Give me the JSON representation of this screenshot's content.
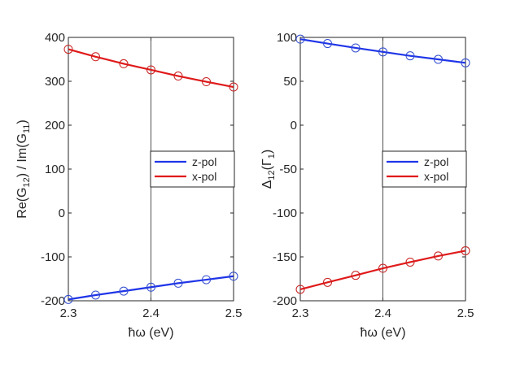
{
  "figure": {
    "colors": {
      "axis": "#262626",
      "zpol": "#1f35e8",
      "xpol": "#e01a1a",
      "marker_edge": "#2f4bcf",
      "xmark_edge": "#c81e1e",
      "background": "#ffffff"
    }
  },
  "chart_data": [
    {
      "type": "line",
      "panel": "left",
      "xlabel": "ħω (eV)",
      "ylabel": {
        "prefix": "Re(G",
        "sub1": "12",
        "mid": ") / Im(G",
        "sub2": "11",
        "suffix": ")"
      },
      "xlim": [
        2.3,
        2.5
      ],
      "ylim": [
        -200,
        400
      ],
      "xticks": [
        2.3,
        2.4,
        2.5
      ],
      "xtick_labels": [
        "2.3",
        "2.4",
        "2.5"
      ],
      "yticks": [
        -200,
        -100,
        0,
        100,
        200,
        300,
        400
      ],
      "ytick_labels": [
        "-200",
        "-100",
        "0",
        "100",
        "200",
        "300",
        "400"
      ],
      "vline_x": 2.4,
      "legend": {
        "location": "right-center",
        "entries": [
          "z-pol",
          "x-pol"
        ]
      },
      "series": [
        {
          "name": "z-pol",
          "color": "#1f35e8",
          "x": [
            2.3,
            2.333,
            2.367,
            2.4,
            2.433,
            2.467,
            2.5
          ],
          "values": [
            -197,
            -187,
            -178,
            -169,
            -160,
            -152,
            -144
          ],
          "markers": [
            -197,
            -187,
            -178,
            -169,
            -160,
            -152,
            -144
          ]
        },
        {
          "name": "x-pol",
          "color": "#e01a1a",
          "x": [
            2.3,
            2.333,
            2.367,
            2.4,
            2.433,
            2.467,
            2.5
          ],
          "values": [
            373,
            356,
            340,
            326,
            312,
            299,
            287
          ],
          "markers": [
            373,
            356,
            340,
            326,
            312,
            299,
            287
          ]
        }
      ]
    },
    {
      "type": "line",
      "panel": "right",
      "xlabel": "ħω (eV)",
      "ylabel": {
        "prefix": "Δ",
        "sub1": "12",
        "mid": "(Γ",
        "sub2": "1",
        "suffix": ")"
      },
      "xlim": [
        2.3,
        2.5
      ],
      "ylim": [
        -200,
        100
      ],
      "xticks": [
        2.3,
        2.4,
        2.5
      ],
      "xtick_labels": [
        "2.3",
        "2.4",
        "2.5"
      ],
      "yticks": [
        -200,
        -150,
        -100,
        -50,
        0,
        50,
        100
      ],
      "ytick_labels": [
        "-200",
        "-150",
        "-100",
        "-50",
        "0",
        "50",
        "100"
      ],
      "vline_x": 2.4,
      "legend": {
        "location": "right-center",
        "entries": [
          "z-pol",
          "x-pol"
        ]
      },
      "series": [
        {
          "name": "z-pol",
          "color": "#1f35e8",
          "x": [
            2.3,
            2.333,
            2.367,
            2.4,
            2.433,
            2.467,
            2.5
          ],
          "values": [
            98,
            93,
            88,
            83.5,
            79,
            75,
            71
          ],
          "markers": [
            98,
            93,
            88,
            83.5,
            79,
            75,
            71
          ]
        },
        {
          "name": "x-pol",
          "color": "#e01a1a",
          "x": [
            2.3,
            2.333,
            2.367,
            2.4,
            2.433,
            2.467,
            2.5
          ],
          "values": [
            -187,
            -179,
            -171,
            -163,
            -156,
            -149,
            -143
          ],
          "markers": [
            -187,
            -179,
            -171,
            -163,
            -156,
            -149,
            -143
          ]
        }
      ]
    }
  ]
}
